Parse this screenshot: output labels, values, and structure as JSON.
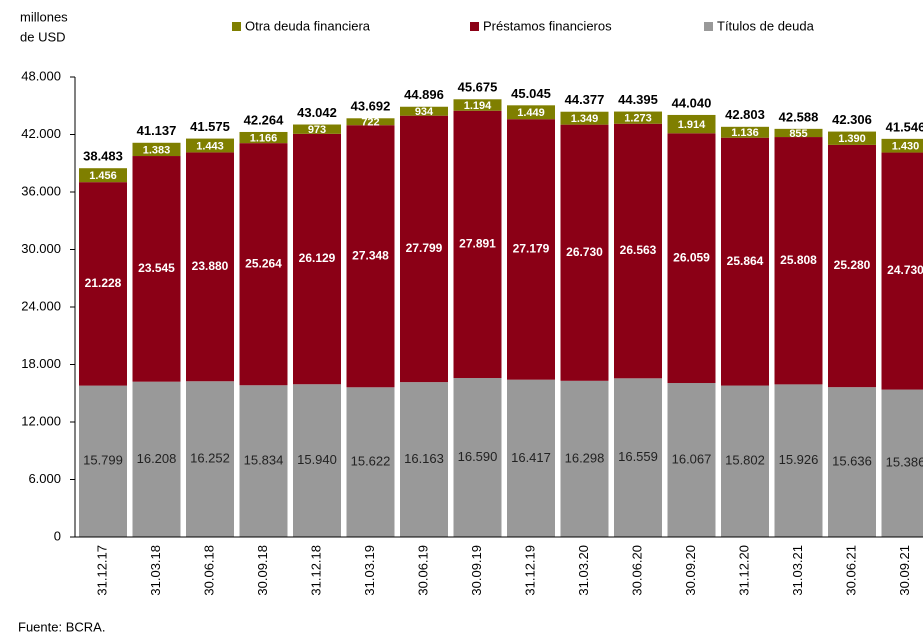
{
  "chart_data": {
    "type": "stacked_bar",
    "ylabel_lines": [
      "millones",
      "de USD"
    ],
    "source": "Fuente: BCRA.",
    "categories": [
      "31.12.17",
      "31.03.18",
      "30.06.18",
      "30.09.18",
      "31.12.18",
      "31.03.19",
      "30.06.19",
      "30.09.19",
      "31.12.19",
      "31.03.20",
      "30.06.20",
      "30.09.20",
      "31.12.20",
      "31.03.21",
      "30.06.21",
      "30.09.21"
    ],
    "series": [
      {
        "name": "Títulos de deuda",
        "color": "#999999",
        "values": [
          15799,
          16208,
          16252,
          15834,
          15940,
          15622,
          16163,
          16590,
          16417,
          16298,
          16559,
          16067,
          15802,
          15926,
          15636,
          15386
        ],
        "value_labels": [
          "15.799",
          "16.208",
          "16.252",
          "15.834",
          "15.940",
          "15.622",
          "16.163",
          "16.590",
          "16.417",
          "16.298",
          "16.559",
          "16.067",
          "15.802",
          "15.926",
          "15.636",
          "15.386"
        ]
      },
      {
        "name": "Préstamos financieros",
        "color": "#8b0016",
        "values": [
          21228,
          23545,
          23880,
          25264,
          26129,
          27348,
          27799,
          27891,
          27179,
          26730,
          26563,
          26059,
          25864,
          25808,
          25280,
          24730
        ],
        "value_labels": [
          "21.228",
          "23.545",
          "23.880",
          "25.264",
          "26.129",
          "27.348",
          "27.799",
          "27.891",
          "27.179",
          "26.730",
          "26.563",
          "26.059",
          "25.864",
          "25.808",
          "25.280",
          "24.730"
        ]
      },
      {
        "name": "Otra deuda financiera",
        "color": "#7f7f00",
        "values": [
          1456,
          1383,
          1443,
          1166,
          973,
          722,
          934,
          1194,
          1449,
          1349,
          1273,
          1914,
          1136,
          855,
          1390,
          1430
        ],
        "value_labels": [
          "1.456",
          "1.383",
          "1.443",
          "1.166",
          "973",
          "722",
          "934",
          "1.194",
          "1.449",
          "1.349",
          "1.273",
          "1.914",
          "1.136",
          "855",
          "1.390",
          "1.430"
        ]
      }
    ],
    "totals": {
      "values": [
        38483,
        41137,
        41575,
        42264,
        43042,
        43692,
        44896,
        45675,
        45045,
        44377,
        44395,
        44040,
        42803,
        42588,
        42306,
        41546
      ],
      "value_labels": [
        "38.483",
        "41.137",
        "41.575",
        "42.264",
        "43.042",
        "43.692",
        "44.896",
        "45.675",
        "45.045",
        "44.377",
        "44.395",
        "44.040",
        "42.803",
        "42.588",
        "42.306",
        "41.546"
      ]
    },
    "ylim": [
      0,
      48000
    ],
    "yticks": [
      0,
      {
        "value": 6000,
        "label": "6.000"
      },
      {
        "value": 12000,
        "label": "12.000"
      },
      {
        "value": 18000,
        "label": "18.000"
      },
      {
        "value": 24000,
        "label": "24.000"
      },
      {
        "value": 30000,
        "label": "30.000"
      },
      {
        "value": 36000,
        "label": "36.000"
      },
      {
        "value": 42000,
        "label": "42.000"
      },
      {
        "value": 48000,
        "label": "48.000"
      }
    ],
    "grid": false
  }
}
